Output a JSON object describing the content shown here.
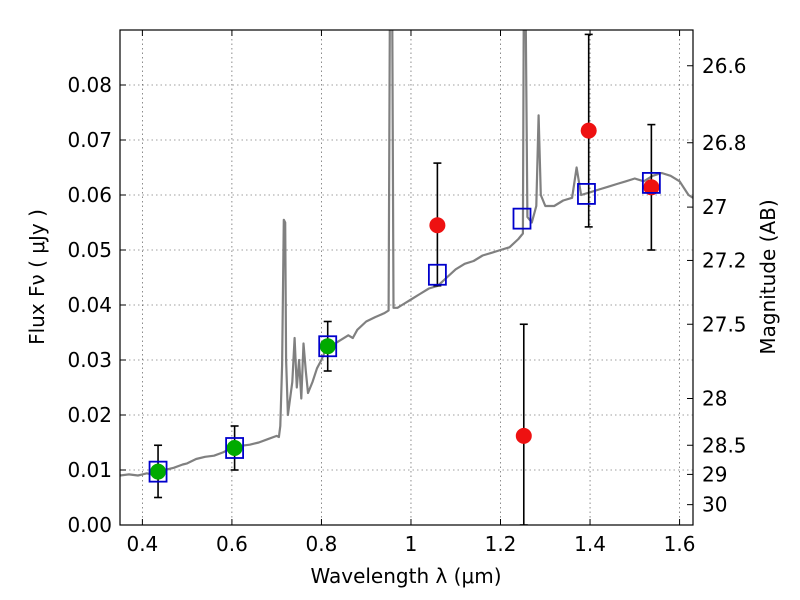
{
  "chart_data": {
    "type": "scatter",
    "xlabel": "Wavelength  λ (μm)",
    "ylabel": "Flux  Fν  ( μJy )",
    "y2label": "Magnitude (AB)",
    "xlim": [
      0.35,
      1.63
    ],
    "ylim": [
      0.0,
      0.09
    ],
    "xticks": [
      0.4,
      0.6,
      0.8,
      1.0,
      1.2,
      1.4,
      1.6
    ],
    "xtick_labels": [
      "0.4",
      "0.6",
      "0.8",
      "1",
      "1.2",
      "1.4",
      "1.6"
    ],
    "yticks": [
      0.0,
      0.01,
      0.02,
      0.03,
      0.04,
      0.05,
      0.06,
      0.07,
      0.08
    ],
    "ytick_labels": [
      "0.00",
      "0.01",
      "0.02",
      "0.03",
      "0.04",
      "0.05",
      "0.06",
      "0.07",
      "0.08"
    ],
    "y2ticks": [
      {
        "label": "26.6",
        "flux": 0.0835
      },
      {
        "label": "26.8",
        "flux": 0.0695
      },
      {
        "label": "27",
        "flux": 0.0578
      },
      {
        "label": "27.2",
        "flux": 0.0481
      },
      {
        "label": "27.5",
        "flux": 0.0365
      },
      {
        "label": "28",
        "flux": 0.023
      },
      {
        "label": "28.5",
        "flux": 0.0145
      },
      {
        "label": "29",
        "flux": 0.0092
      },
      {
        "label": "30",
        "flux": 0.0037
      }
    ],
    "grid": true,
    "colors": {
      "spectrum": "#808080",
      "model_marker": "#0000cc",
      "detection": "#00aa00",
      "measurement": "#ee1111"
    },
    "series": [
      {
        "kind": "model_photometry",
        "marker": "open-square",
        "points": [
          {
            "x": 0.435,
            "y": 0.0097
          },
          {
            "x": 0.606,
            "y": 0.014
          },
          {
            "x": 0.814,
            "y": 0.0325
          },
          {
            "x": 1.059,
            "y": 0.0455
          },
          {
            "x": 1.248,
            "y": 0.0557
          },
          {
            "x": 1.392,
            "y": 0.0602
          },
          {
            "x": 1.537,
            "y": 0.0622
          }
        ]
      },
      {
        "kind": "observed_optical",
        "marker": "filled-circle",
        "points": [
          {
            "x": 0.435,
            "y": 0.0097,
            "ylo": 0.005,
            "yhi": 0.0145
          },
          {
            "x": 0.606,
            "y": 0.014,
            "ylo": 0.01,
            "yhi": 0.018
          },
          {
            "x": 0.814,
            "y": 0.0325,
            "ylo": 0.028,
            "yhi": 0.037
          }
        ]
      },
      {
        "kind": "observed_nir",
        "marker": "filled-circle",
        "points": [
          {
            "x": 1.059,
            "y": 0.0545,
            "ylo": 0.0435,
            "yhi": 0.0658
          },
          {
            "x": 1.252,
            "y": 0.0162,
            "ylo": 0.0,
            "yhi": 0.0365
          },
          {
            "x": 1.397,
            "y": 0.0717,
            "ylo": 0.0542,
            "yhi": 0.0892
          },
          {
            "x": 1.537,
            "y": 0.0614,
            "ylo": 0.05,
            "yhi": 0.0728
          }
        ]
      }
    ],
    "spectrum": [
      [
        0.35,
        0.009
      ],
      [
        0.37,
        0.0092
      ],
      [
        0.39,
        0.009
      ],
      [
        0.4,
        0.0092
      ],
      [
        0.41,
        0.0094
      ],
      [
        0.42,
        0.0092
      ],
      [
        0.43,
        0.0095
      ],
      [
        0.45,
        0.01
      ],
      [
        0.47,
        0.0104
      ],
      [
        0.49,
        0.011
      ],
      [
        0.5,
        0.0112
      ],
      [
        0.52,
        0.012
      ],
      [
        0.54,
        0.0124
      ],
      [
        0.56,
        0.0126
      ],
      [
        0.58,
        0.0132
      ],
      [
        0.6,
        0.014
      ],
      [
        0.61,
        0.0137
      ],
      [
        0.62,
        0.0144
      ],
      [
        0.64,
        0.0146
      ],
      [
        0.66,
        0.015
      ],
      [
        0.68,
        0.0156
      ],
      [
        0.7,
        0.0162
      ],
      [
        0.705,
        0.016
      ],
      [
        0.708,
        0.018
      ],
      [
        0.712,
        0.029
      ],
      [
        0.716,
        0.0555
      ],
      [
        0.719,
        0.055
      ],
      [
        0.721,
        0.03
      ],
      [
        0.725,
        0.02
      ],
      [
        0.73,
        0.023
      ],
      [
        0.735,
        0.026
      ],
      [
        0.74,
        0.034
      ],
      [
        0.745,
        0.025
      ],
      [
        0.75,
        0.03
      ],
      [
        0.755,
        0.023
      ],
      [
        0.76,
        0.033
      ],
      [
        0.765,
        0.028
      ],
      [
        0.77,
        0.024
      ],
      [
        0.78,
        0.026
      ],
      [
        0.79,
        0.0285
      ],
      [
        0.8,
        0.03
      ],
      [
        0.81,
        0.032
      ],
      [
        0.82,
        0.0325
      ],
      [
        0.84,
        0.0335
      ],
      [
        0.86,
        0.0345
      ],
      [
        0.87,
        0.034
      ],
      [
        0.88,
        0.0355
      ],
      [
        0.9,
        0.037
      ],
      [
        0.92,
        0.0378
      ],
      [
        0.94,
        0.0385
      ],
      [
        0.95,
        0.039
      ],
      [
        0.953,
        0.095
      ],
      [
        0.958,
        0.095
      ],
      [
        0.961,
        0.0395
      ],
      [
        0.97,
        0.0395
      ],
      [
        0.98,
        0.04
      ],
      [
        1.0,
        0.041
      ],
      [
        1.02,
        0.042
      ],
      [
        1.04,
        0.043
      ],
      [
        1.06,
        0.0435
      ],
      [
        1.08,
        0.045
      ],
      [
        1.1,
        0.0465
      ],
      [
        1.12,
        0.0475
      ],
      [
        1.14,
        0.048
      ],
      [
        1.16,
        0.049
      ],
      [
        1.18,
        0.0495
      ],
      [
        1.2,
        0.05
      ],
      [
        1.22,
        0.0505
      ],
      [
        1.24,
        0.052
      ],
      [
        1.25,
        0.053
      ],
      [
        1.252,
        0.095
      ],
      [
        1.256,
        0.095
      ],
      [
        1.26,
        0.056
      ],
      [
        1.27,
        0.055
      ],
      [
        1.28,
        0.058
      ],
      [
        1.285,
        0.0745
      ],
      [
        1.29,
        0.06
      ],
      [
        1.3,
        0.058
      ],
      [
        1.32,
        0.058
      ],
      [
        1.34,
        0.059
      ],
      [
        1.36,
        0.0595
      ],
      [
        1.37,
        0.065
      ],
      [
        1.38,
        0.06
      ],
      [
        1.4,
        0.0605
      ],
      [
        1.42,
        0.061
      ],
      [
        1.44,
        0.0615
      ],
      [
        1.46,
        0.062
      ],
      [
        1.48,
        0.0625
      ],
      [
        1.5,
        0.063
      ],
      [
        1.52,
        0.0625
      ],
      [
        1.54,
        0.0635
      ],
      [
        1.56,
        0.064
      ],
      [
        1.58,
        0.0635
      ],
      [
        1.6,
        0.0625
      ],
      [
        1.62,
        0.06
      ],
      [
        1.63,
        0.0595
      ]
    ]
  }
}
